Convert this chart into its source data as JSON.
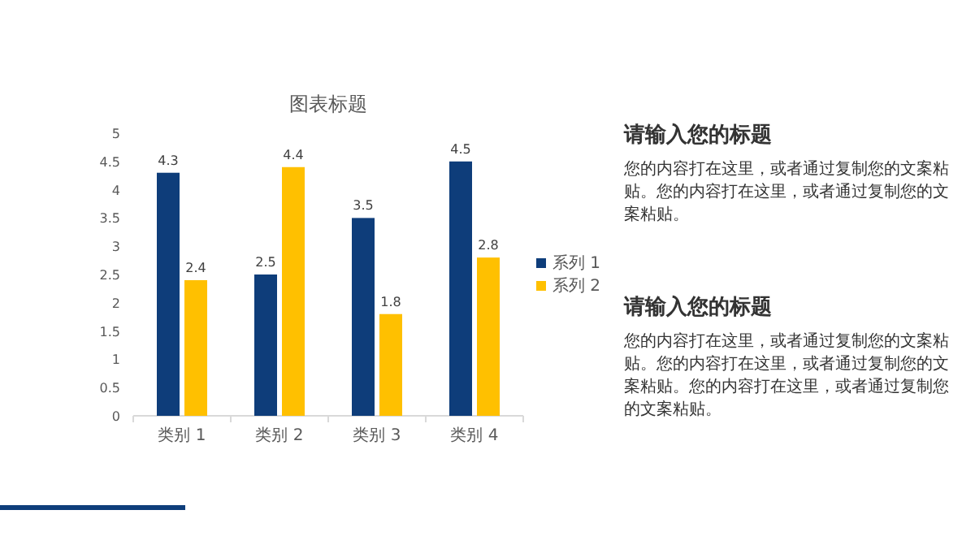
{
  "chart_data": [
    {
      "type": "bar",
      "title": "图表标题",
      "categories": [
        "类别 1",
        "类别 2",
        "类别 3",
        "类别 4"
      ],
      "series": [
        {
          "name": "系列 1",
          "color": "#0e3d7a",
          "values": [
            4.3,
            2.5,
            3.5,
            4.5
          ]
        },
        {
          "name": "系列 2",
          "color": "#ffc000",
          "values": [
            2.4,
            4.4,
            1.8,
            2.8
          ]
        }
      ],
      "ylim": [
        0,
        5
      ],
      "yticks": [
        0,
        0.5,
        1,
        1.5,
        2,
        2.5,
        3,
        3.5,
        4,
        4.5,
        5
      ],
      "data_labels": true,
      "legend": "right"
    },
    {
      "type": "other",
      "annotations": [
        "请输入您的标题",
        "您的内容打在这里，或者通过复制您的文案粘贴。您的内容打在这里，或者通过复制您的文案粘贴。",
        "请输入您的标题",
        "您的内容打在这里，或者通过复制您的文案粘贴。您的内容打在这里，或者通过复制您的文案粘贴。您的内容打在这里，或者通过复制您的文案粘贴。"
      ]
    }
  ]
}
